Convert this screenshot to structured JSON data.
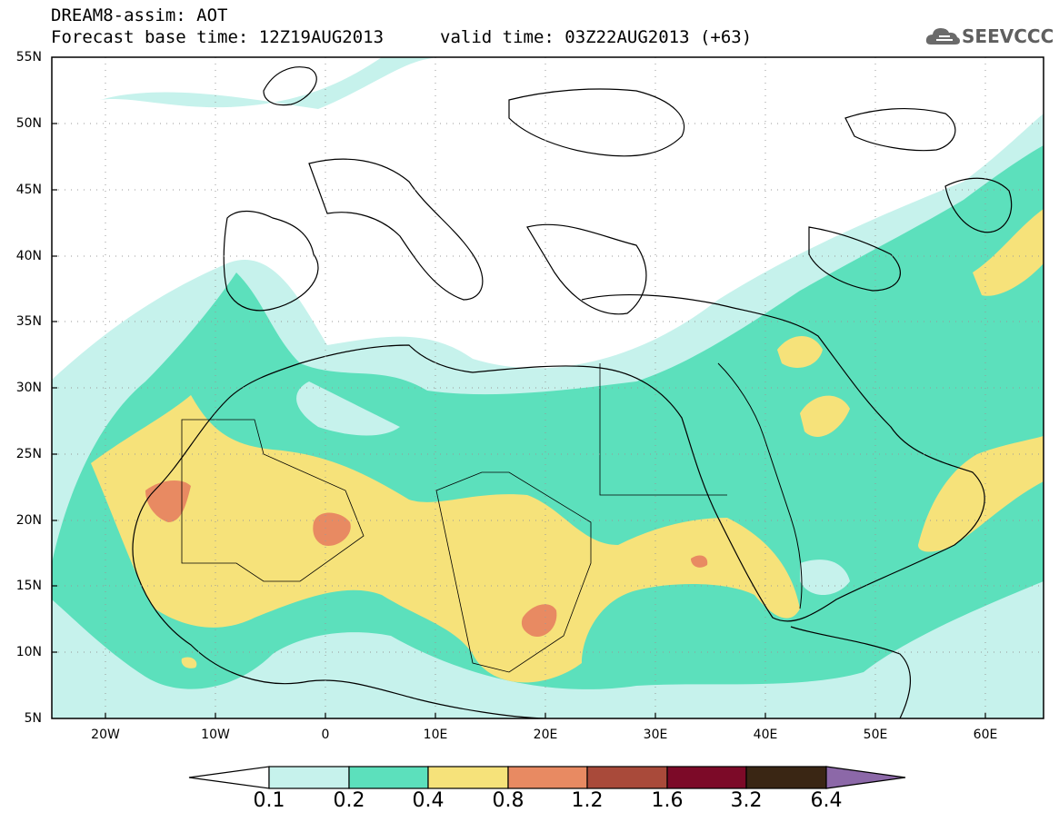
{
  "header": {
    "line1": "DREAM8-assim: AOT",
    "line2": "Forecast base time: 12Z19AUG2013",
    "valid": "valid time: 03Z22AUG2013 (+63)"
  },
  "logo": {
    "text": "SEEVCCC",
    "icon": "cloud-icon"
  },
  "map": {
    "lat_labels": [
      "55N",
      "50N",
      "45N",
      "40N",
      "35N",
      "30N",
      "25N",
      "20N",
      "15N",
      "10N",
      "5N"
    ],
    "lon_labels": [
      "20W",
      "10W",
      "0",
      "10E",
      "20E",
      "30E",
      "40E",
      "50E",
      "60E"
    ],
    "lon_range": [
      -25,
      65
    ],
    "lat_range": [
      5,
      55
    ],
    "grid": true
  },
  "colorbar": {
    "labels": [
      "0.1",
      "0.2",
      "0.4",
      "0.8",
      "1.2",
      "1.6",
      "3.2",
      "6.4"
    ],
    "colors": [
      "#c6f2ec",
      "#5ce0bc",
      "#f6e27a",
      "#e88a62",
      "#a94a3a",
      "#7c0a28",
      "#3a2614",
      "#8c68a8"
    ],
    "under_color": "#ffffff"
  }
}
